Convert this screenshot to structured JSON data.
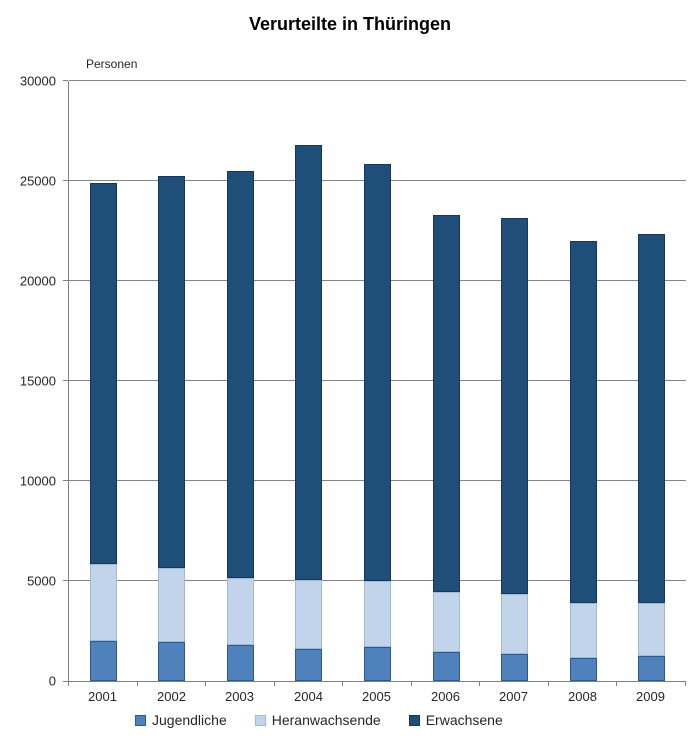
{
  "chart_data": {
    "type": "bar",
    "stacked": true,
    "title": "Verurteilte in Thüringen",
    "ylabel": "Personen",
    "xlabel": "",
    "categories": [
      "2001",
      "2002",
      "2003",
      "2004",
      "2005",
      "2006",
      "2007",
      "2008",
      "2009"
    ],
    "series": [
      {
        "name": "Jugendliche",
        "color": "#4F81BD",
        "border_color": "#2C5A8A",
        "values": [
          2000,
          1950,
          1800,
          1600,
          1700,
          1450,
          1350,
          1150,
          1250
        ]
      },
      {
        "name": "Heranwachsende",
        "color": "#C2D4EA",
        "border_color": "#9DBBD9",
        "values": [
          3850,
          3700,
          3350,
          3450,
          3300,
          3000,
          3000,
          2750,
          2650
        ]
      },
      {
        "name": "Erwachsene",
        "color": "#1F4E79",
        "border_color": "#16375E",
        "values": [
          19050,
          19600,
          20350,
          21750,
          20850,
          18850,
          18800,
          18100,
          18450
        ]
      }
    ],
    "totals": [
      24900,
      25250,
      25500,
      26800,
      25850,
      23300,
      23150,
      22000,
      22350
    ],
    "ylim": [
      0,
      30000
    ],
    "ytick_interval": 5000,
    "yticks": [
      "0",
      "5000",
      "10000",
      "15000",
      "20000",
      "25000",
      "30000"
    ],
    "grid": true,
    "legend_position": "bottom",
    "axis_color": "#808080",
    "gridline_color": "#848484"
  }
}
